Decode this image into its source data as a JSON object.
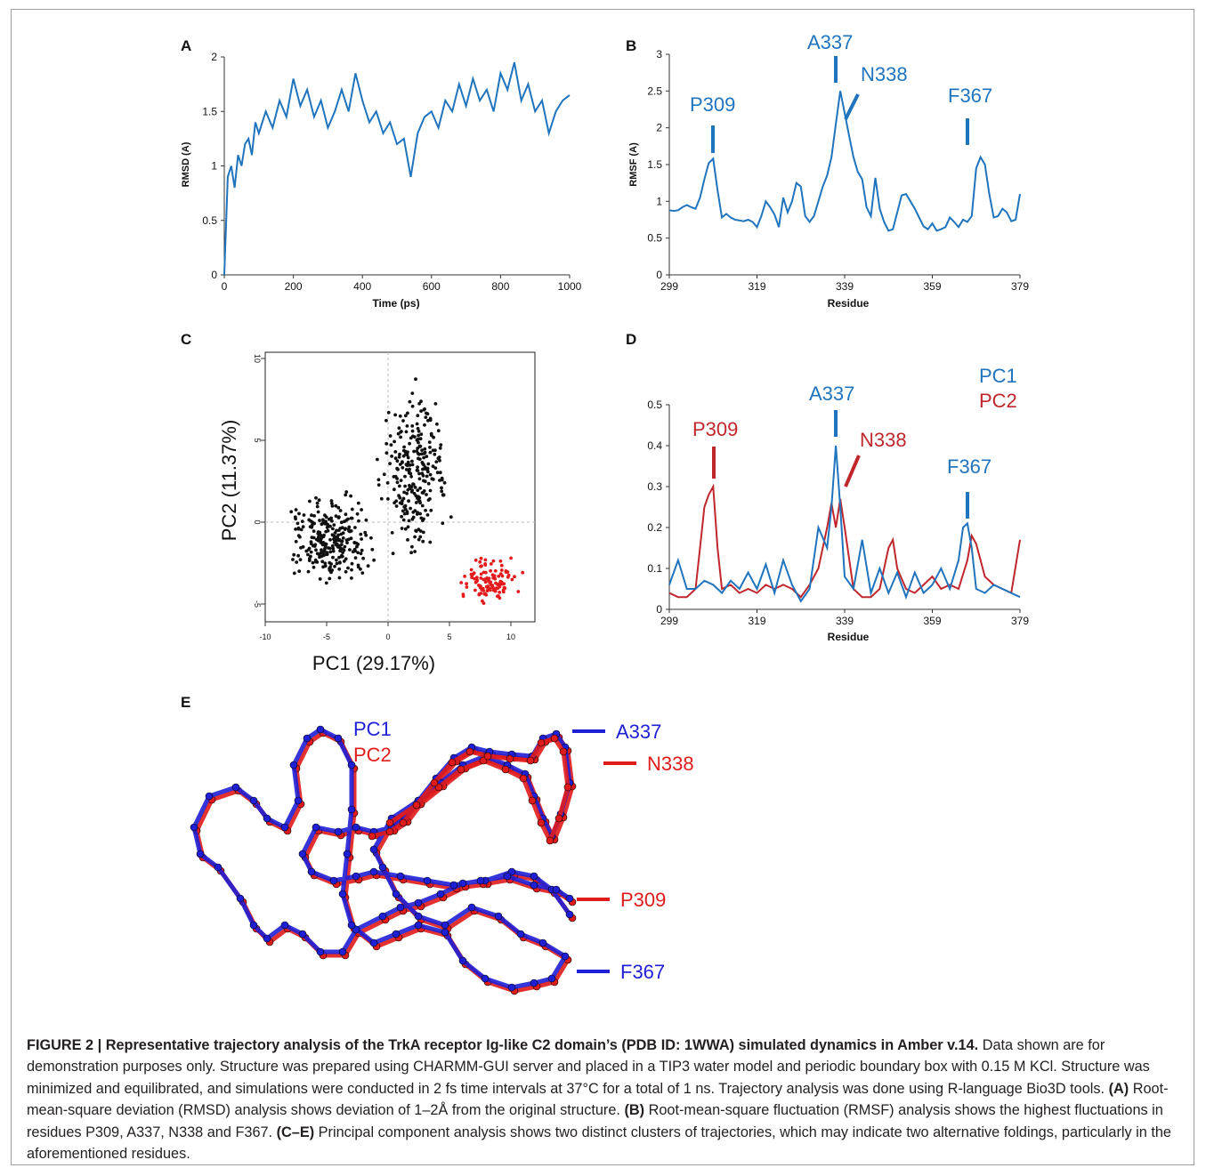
{
  "colors": {
    "blue": "#1f74bd",
    "red": "#c0272d",
    "black": "#111111",
    "scatter_red": "#e41a1c",
    "pc1_struct": "#1f1fd6",
    "pc2_struct": "#e01b1b"
  },
  "panels": {
    "A": "A",
    "B": "B",
    "C": "C",
    "D": "D",
    "E": "E"
  },
  "chart_data": [
    {
      "id": "A",
      "type": "line",
      "xlabel": "Time (ps)",
      "ylabel": "RMSD (A)",
      "xlim": [
        0,
        1000
      ],
      "ylim": [
        0,
        2
      ],
      "xticks": [
        "0",
        "200",
        "400",
        "600",
        "800",
        "1000"
      ],
      "yticks": [
        "0",
        "0.5",
        "1",
        "1.5",
        "2"
      ],
      "series": [
        {
          "x": [
            0,
            10,
            20,
            30,
            40,
            50,
            60,
            70,
            80,
            90,
            100,
            120,
            140,
            160,
            180,
            200,
            220,
            240,
            260,
            280,
            300,
            320,
            340,
            360,
            380,
            400,
            420,
            440,
            460,
            480,
            500,
            520,
            540,
            560,
            580,
            600,
            620,
            640,
            660,
            680,
            700,
            720,
            740,
            760,
            780,
            800,
            820,
            840,
            860,
            880,
            900,
            920,
            940,
            960,
            980,
            1000
          ],
          "y": [
            0,
            0.9,
            1.0,
            0.8,
            1.1,
            1.0,
            1.2,
            1.25,
            1.1,
            1.4,
            1.3,
            1.5,
            1.35,
            1.6,
            1.45,
            1.8,
            1.55,
            1.7,
            1.45,
            1.6,
            1.35,
            1.5,
            1.7,
            1.5,
            1.85,
            1.6,
            1.4,
            1.5,
            1.3,
            1.4,
            1.2,
            1.25,
            0.9,
            1.3,
            1.45,
            1.5,
            1.35,
            1.6,
            1.5,
            1.75,
            1.55,
            1.8,
            1.6,
            1.7,
            1.5,
            1.85,
            1.7,
            1.95,
            1.6,
            1.75,
            1.5,
            1.6,
            1.3,
            1.5,
            1.6,
            1.65
          ]
        }
      ]
    },
    {
      "id": "B",
      "type": "line",
      "xlabel": "Residue",
      "ylabel": "RMSF (A)",
      "xlim": [
        299,
        379
      ],
      "ylim": [
        0,
        3
      ],
      "xticks": [
        "299",
        "319",
        "339",
        "359",
        "379"
      ],
      "yticks": [
        "0",
        "0.5",
        "1",
        "1.5",
        "2",
        "2.5",
        "3"
      ],
      "series": [
        {
          "x": [
            299,
            300,
            301,
            302,
            303,
            304,
            305,
            306,
            307,
            308,
            309,
            310,
            311,
            312,
            313,
            314,
            315,
            316,
            317,
            318,
            319,
            320,
            321,
            322,
            323,
            324,
            325,
            326,
            327,
            328,
            329,
            330,
            331,
            332,
            333,
            334,
            335,
            336,
            337,
            338,
            339,
            340,
            341,
            342,
            343,
            344,
            345,
            346,
            347,
            348,
            349,
            350,
            351,
            352,
            353,
            354,
            355,
            356,
            357,
            358,
            359,
            360,
            361,
            362,
            363,
            364,
            365,
            366,
            367,
            368,
            369,
            370,
            371,
            372,
            373,
            374,
            375,
            376,
            377,
            378,
            379
          ],
          "y": [
            0.88,
            0.87,
            0.88,
            0.92,
            0.95,
            0.92,
            0.9,
            1.05,
            1.3,
            1.52,
            1.58,
            1.15,
            0.78,
            0.83,
            0.78,
            0.75,
            0.74,
            0.73,
            0.75,
            0.72,
            0.65,
            0.8,
            1.0,
            0.92,
            0.82,
            0.65,
            1.05,
            0.85,
            1.0,
            1.25,
            1.2,
            0.8,
            0.72,
            0.8,
            1.0,
            1.2,
            1.35,
            1.6,
            2.05,
            2.5,
            2.2,
            1.9,
            1.6,
            1.4,
            1.3,
            0.92,
            0.8,
            1.32,
            0.9,
            0.72,
            0.6,
            0.62,
            0.85,
            1.08,
            1.1,
            1.0,
            0.9,
            0.78,
            0.66,
            0.62,
            0.7,
            0.6,
            0.62,
            0.65,
            0.78,
            0.72,
            0.65,
            0.75,
            0.72,
            0.8,
            1.45,
            1.6,
            1.5,
            1.1,
            0.78,
            0.8,
            0.9,
            0.85,
            0.73,
            0.75,
            1.1
          ]
        }
      ],
      "annotations": [
        "P309",
        "A337",
        "N338",
        "F367"
      ]
    },
    {
      "id": "C",
      "type": "scatter",
      "xlabel": "PC1 (29.17%)",
      "ylabel": "PC2 (11.37%)",
      "xlim": [
        -10,
        10
      ],
      "ylim": [
        -5,
        10
      ],
      "xticks": [
        "-10",
        "-5",
        "0",
        "5",
        "10"
      ],
      "yticks": [
        "-5",
        "0",
        "5",
        "10"
      ],
      "clusters": [
        {
          "name": "black cluster",
          "center": [
            -3,
            0
          ],
          "spread": [
            3.5,
            4
          ]
        },
        {
          "name": "red cluster",
          "center": [
            8.5,
            -3.5
          ],
          "spread": [
            1.5,
            1.2
          ]
        }
      ]
    },
    {
      "id": "D",
      "type": "line",
      "xlabel": "Residue",
      "xlim": [
        299,
        379
      ],
      "ylim": [
        0,
        0.5
      ],
      "xticks": [
        "299",
        "319",
        "339",
        "359",
        "379"
      ],
      "yticks": [
        "0",
        "0.1",
        "0.2",
        "0.3",
        "0.4",
        "0.5"
      ],
      "legend": [
        "PC1",
        "PC2"
      ],
      "series": [
        {
          "name": "PC1",
          "x": [
            299,
            301,
            303,
            305,
            307,
            309,
            311,
            313,
            315,
            317,
            319,
            321,
            323,
            325,
            327,
            329,
            331,
            333,
            335,
            336,
            337,
            338,
            339,
            341,
            343,
            345,
            347,
            349,
            351,
            353,
            355,
            357,
            359,
            361,
            363,
            365,
            366,
            367,
            368,
            369,
            371,
            373,
            375,
            377,
            379
          ],
          "y": [
            0.06,
            0.12,
            0.05,
            0.05,
            0.07,
            0.06,
            0.04,
            0.07,
            0.05,
            0.09,
            0.05,
            0.11,
            0.04,
            0.12,
            0.06,
            0.02,
            0.05,
            0.2,
            0.15,
            0.25,
            0.4,
            0.25,
            0.08,
            0.05,
            0.17,
            0.04,
            0.1,
            0.04,
            0.09,
            0.03,
            0.09,
            0.04,
            0.06,
            0.1,
            0.05,
            0.12,
            0.2,
            0.21,
            0.15,
            0.05,
            0.04,
            0.06,
            0.05,
            0.04,
            0.03
          ]
        },
        {
          "name": "PC2",
          "x": [
            299,
            301,
            303,
            305,
            306,
            307,
            308,
            309,
            310,
            311,
            313,
            315,
            317,
            319,
            321,
            323,
            325,
            327,
            329,
            331,
            333,
            335,
            336,
            337,
            338,
            339,
            341,
            343,
            345,
            347,
            349,
            350,
            351,
            353,
            355,
            357,
            359,
            361,
            363,
            365,
            367,
            368,
            369,
            371,
            373,
            375,
            377,
            379
          ],
          "y": [
            0.04,
            0.03,
            0.03,
            0.05,
            0.15,
            0.25,
            0.28,
            0.3,
            0.15,
            0.05,
            0.06,
            0.04,
            0.05,
            0.04,
            0.06,
            0.05,
            0.06,
            0.05,
            0.03,
            0.06,
            0.1,
            0.2,
            0.26,
            0.2,
            0.27,
            0.2,
            0.05,
            0.03,
            0.03,
            0.05,
            0.15,
            0.17,
            0.1,
            0.05,
            0.04,
            0.06,
            0.08,
            0.05,
            0.06,
            0.05,
            0.12,
            0.18,
            0.16,
            0.08,
            0.06,
            0.05,
            0.04,
            0.17
          ]
        }
      ],
      "annotations": [
        "P309",
        "A337",
        "N338",
        "F367"
      ]
    }
  ],
  "panel_e": {
    "legend": [
      "PC1",
      "PC2"
    ],
    "labels": [
      "A337",
      "N338",
      "P309",
      "F367"
    ]
  },
  "caption": {
    "title": "FIGURE 2 | Representative trajectory analysis of the TrkA receptor Ig-like C2 domain’s (PDB ID: 1WWA) simulated dynamics in Amber v.14.",
    "body1": " Data shown are for demonstration purposes only. Structure was prepared using CHARMM-GUI server and placed in a TIP3 water model and periodic boundary box with 0.15 M KCl. Structure was minimized and equilibrated, and simulations were conducted in 2 fs time intervals at 37°C for a total of 1 ns. Trajectory analysis was done using R-language Bio3D tools. ",
    "a_label": "(A)",
    "a_text": " Root-mean-square deviation (RMSD) analysis shows deviation of 1–2Å from the original structure. ",
    "b_label": "(B)",
    "b_text": " Root-mean-square fluctuation (RMSF) analysis shows the highest fluctuations in residues P309, A337, N338 and F367. ",
    "ce_label": "(C–E)",
    "ce_text": " Principal component analysis shows two distinct clusters of trajectories, which may indicate two alternative foldings, particularly in the aforementioned residues."
  }
}
